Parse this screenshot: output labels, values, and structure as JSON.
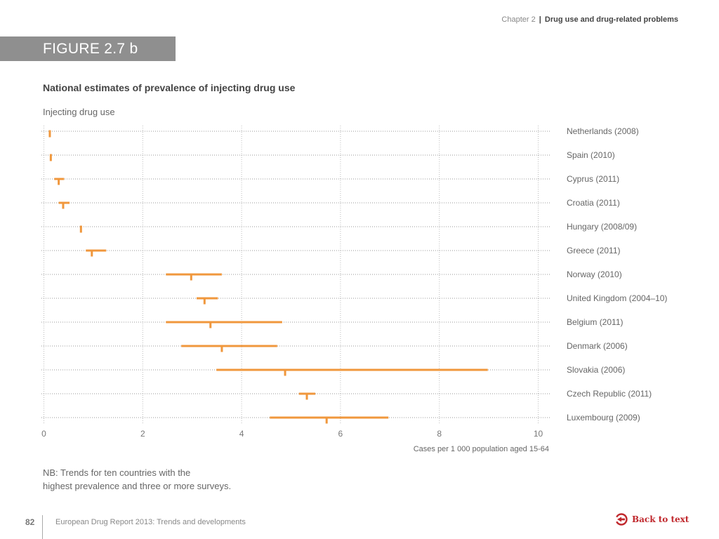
{
  "header": {
    "chapter": "Chapter 2",
    "separator": "|",
    "title": "Drug use and drug-related problems"
  },
  "figure": {
    "label": "FIGURE 2.7 b",
    "title": "National estimates of prevalence of injecting drug use",
    "subtitle": "Injecting drug use",
    "note_line1": "NB: Trends for ten countries with the",
    "note_line2": "highest prevalence and three or more surveys."
  },
  "footer": {
    "page_number": "82",
    "report_title": "European Drug Report 2013: Trends and developments",
    "back_label": "Back to text"
  },
  "colors": {
    "accent": "#f0973c",
    "banner": "#8f8f8f",
    "back_link": "#c0282d"
  },
  "chart_data": {
    "type": "range-dot",
    "title": "National estimates of prevalence of injecting drug use",
    "subtitle": "Injecting drug use",
    "xlabel": "Cases per 1 000 population aged 15-64",
    "ylabel": "",
    "xlim": [
      0,
      10
    ],
    "xticks": [
      0,
      2,
      4,
      6,
      8,
      10
    ],
    "xtick_labels": [
      "0",
      "2",
      "4",
      "6",
      "8",
      "10"
    ],
    "grid": true,
    "legend": "none",
    "categories": [
      "Netherlands (2008)",
      "Spain (2010)",
      "Cyprus (2011)",
      "Croatia (2011)",
      "Hungary (2008/09)",
      "Greece (2011)",
      "Norway (2010)",
      "United Kingdom (2004–10)",
      "Belgium (2011)",
      "Denmark (2006)",
      "Slovakia (2006)",
      "Czech Republic (2011)",
      "Luxembourg (2009)"
    ],
    "central": [
      0.12,
      0.14,
      0.3,
      0.39,
      0.75,
      0.97,
      2.98,
      3.25,
      3.37,
      3.6,
      4.88,
      5.32,
      5.72
    ],
    "low": [
      0.12,
      0.14,
      0.21,
      0.3,
      0.75,
      0.85,
      2.47,
      3.09,
      2.47,
      2.78,
      3.49,
      5.16,
      4.57
    ],
    "high": [
      0.12,
      0.14,
      0.41,
      0.52,
      0.75,
      1.26,
      3.6,
      3.52,
      4.82,
      4.72,
      8.98,
      5.49,
      6.97
    ]
  }
}
